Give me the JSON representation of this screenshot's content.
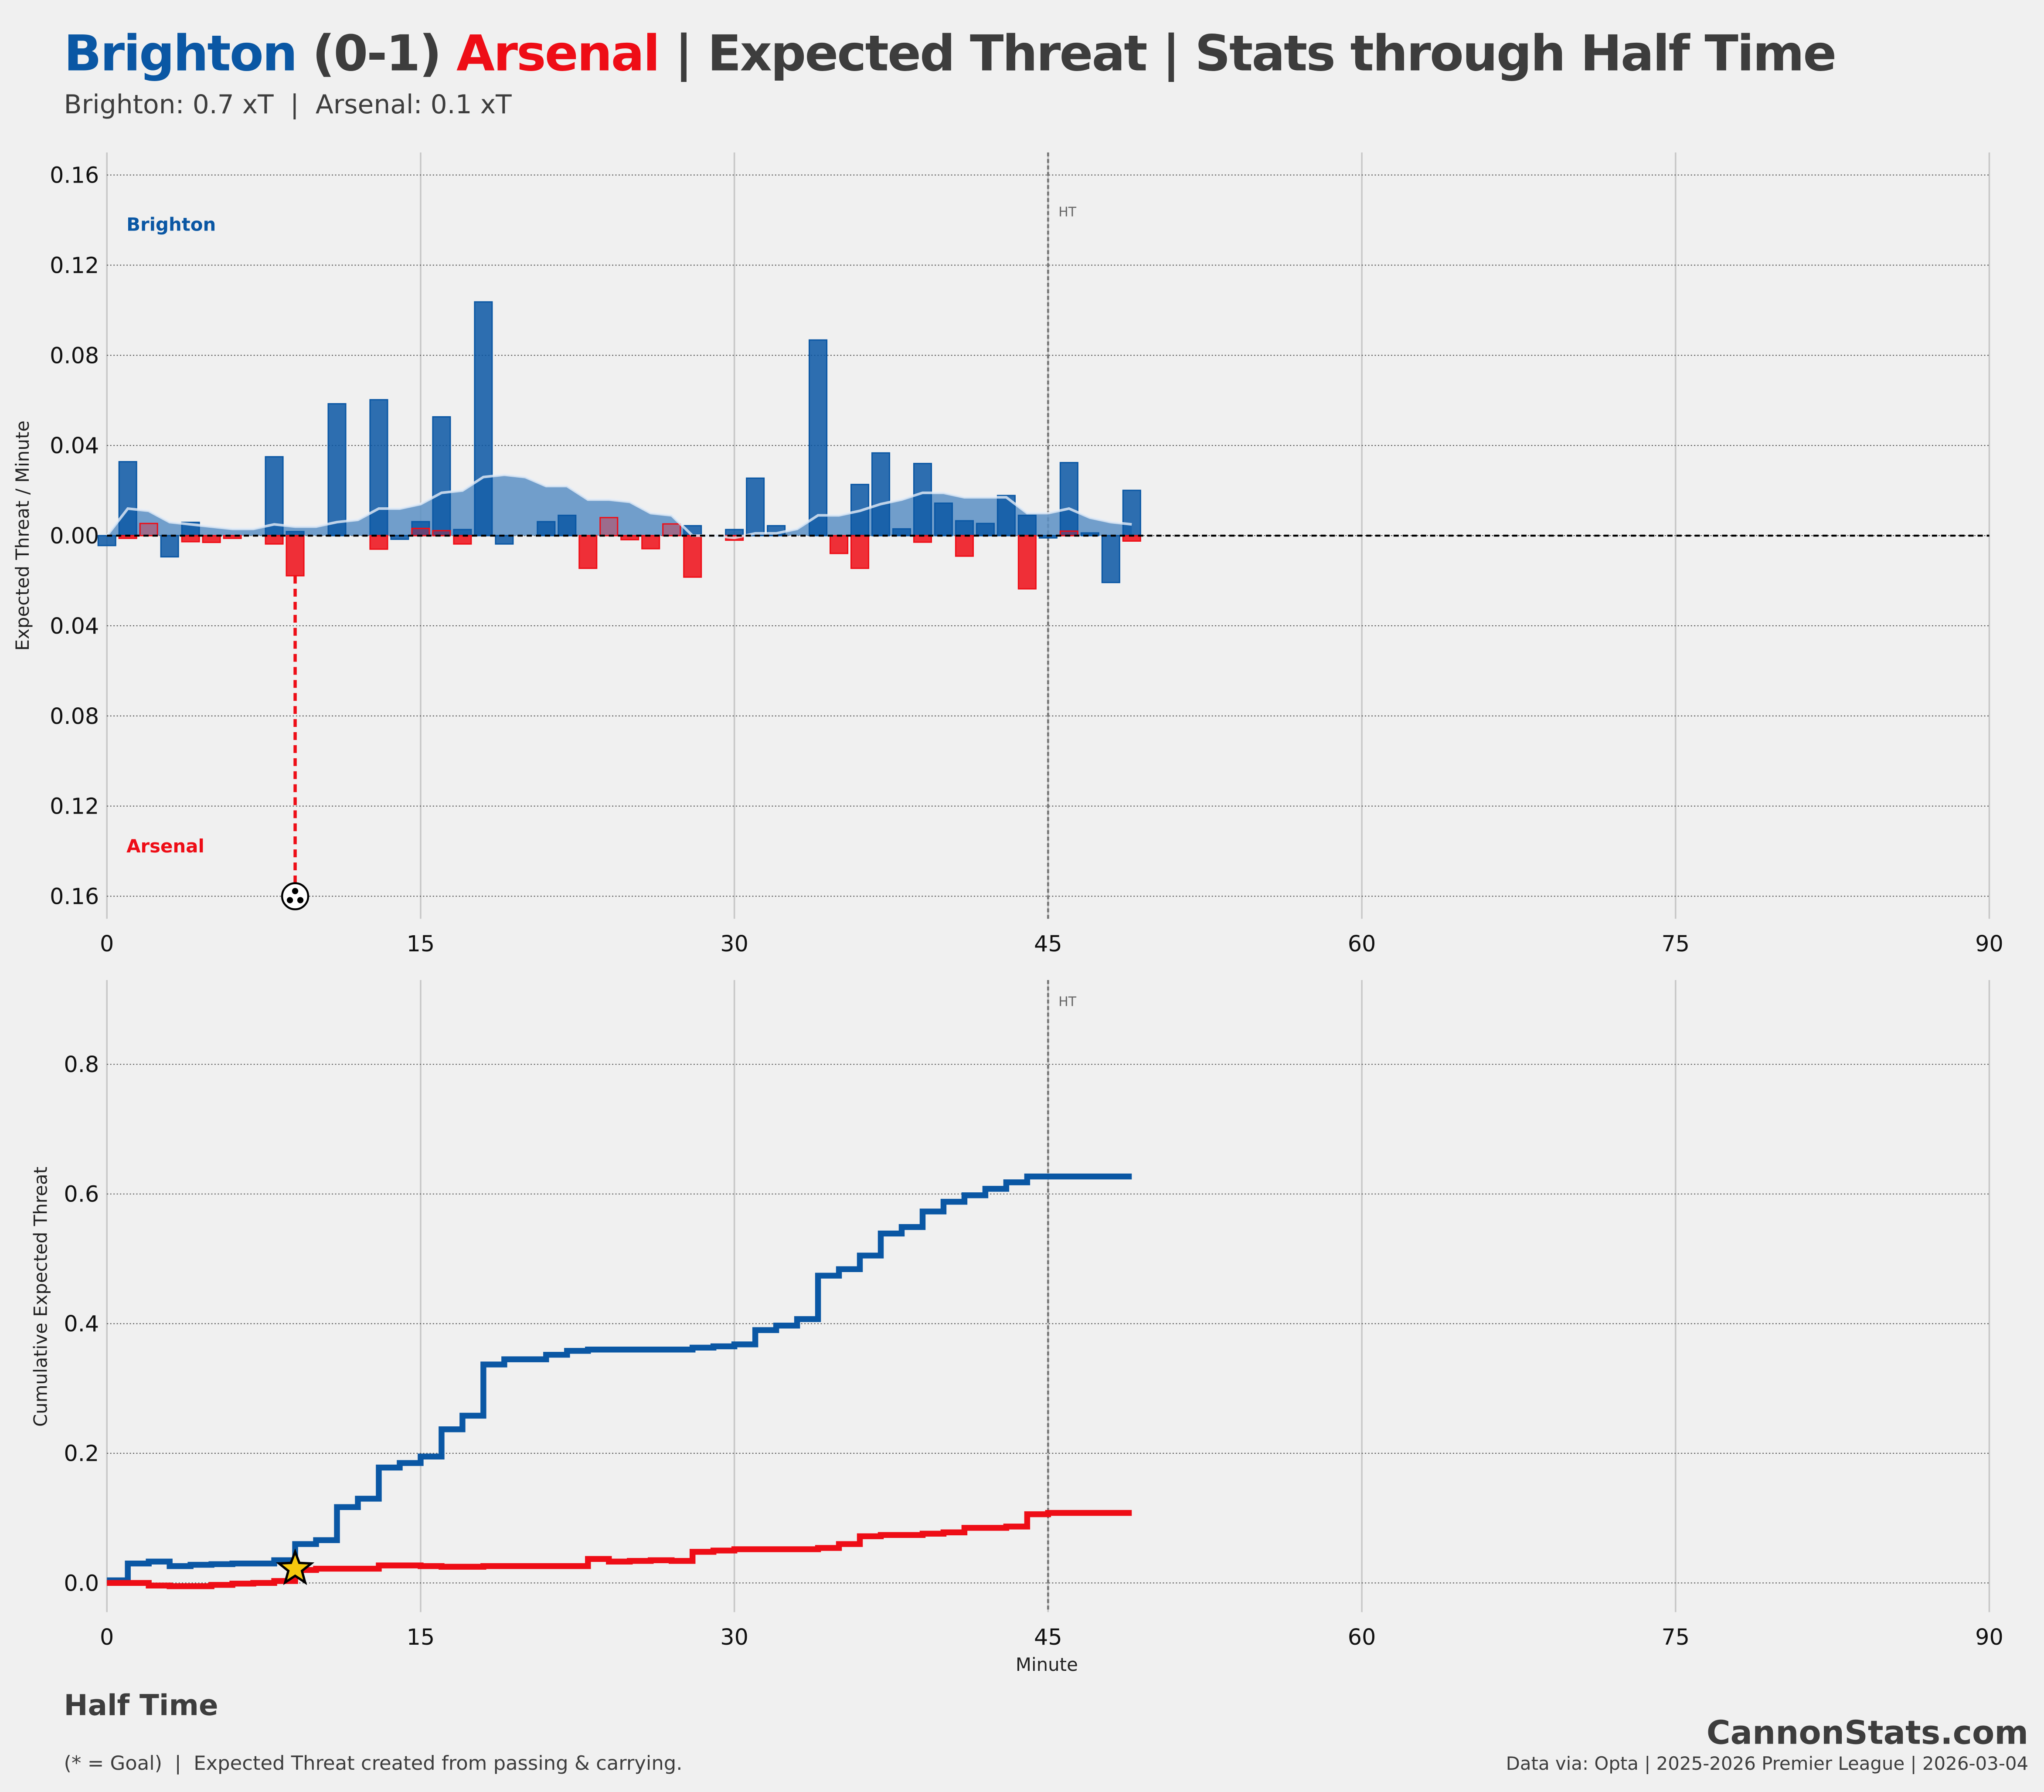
{
  "header": {
    "home": "Brighton",
    "score": "(0-1)",
    "away": "Arsenal",
    "rest": "| Expected Threat | Stats through Half Time",
    "subtitle": "Brighton: 0.7 xT  |  Arsenal: 0.1 xT"
  },
  "colors": {
    "home": "#0a57a4",
    "away": "#ee0d16",
    "text": "#3d3d3d",
    "bg": "#f0f0f0"
  },
  "footer": {
    "status": "Half Time",
    "note": "(* = Goal)  |  Expected Threat created from passing & carrying.",
    "brand": "CannonStats.com",
    "source": "Data via: Opta | 2025-2026 Premier League | 2026-03-04"
  },
  "chart_data": [
    {
      "type": "bar",
      "title": "",
      "xlabel": "",
      "ylabel": "Expected Threat / Minute",
      "xlim": [
        0,
        90
      ],
      "ylim": [
        -0.17,
        0.17
      ],
      "x_ticks": [
        0,
        15,
        30,
        45,
        60,
        75,
        90
      ],
      "y_ticks": [
        0.16,
        0.12,
        0.08,
        0.04,
        0.0,
        -0.04,
        -0.08,
        -0.12,
        -0.16
      ],
      "y_tick_labels": [
        "0.16",
        "0.12",
        "0.08",
        "0.04",
        "0.00",
        "0.04",
        "0.08",
        "0.12",
        "0.16"
      ],
      "team_labels": {
        "home": "Brighton",
        "away": "Arsenal"
      },
      "annotation": "HT",
      "halftime_minute": 45,
      "goal": {
        "team": "Arsenal",
        "minute": 9
      },
      "series": [
        {
          "name": "Brighton",
          "direction": "up",
          "minutes": [
            0,
            1,
            3,
            4,
            8,
            9,
            11,
            13,
            14,
            15,
            16,
            17,
            18,
            19,
            21,
            22,
            28,
            30,
            31,
            32,
            34,
            36,
            37,
            38,
            39,
            40,
            41,
            42,
            43,
            44,
            45,
            46,
            47,
            48,
            49
          ],
          "values": [
            -0.0044,
            0.0328,
            -0.0094,
            0.0059,
            0.035,
            0.0018,
            0.0585,
            0.0603,
            -0.0016,
            0.0062,
            0.0527,
            0.0027,
            0.1037,
            -0.0037,
            0.0062,
            0.009,
            0.0044,
            0.0027,
            0.0255,
            0.0044,
            0.0868,
            0.0227,
            0.0367,
            0.003,
            0.032,
            0.0144,
            0.0066,
            0.0054,
            0.0178,
            0.009,
            -0.001,
            0.0324,
            0.0012,
            -0.0208,
            0.0201
          ]
        },
        {
          "name": "Arsenal",
          "direction": "down",
          "minutes": [
            1,
            2,
            4,
            5,
            6,
            8,
            9,
            13,
            15,
            16,
            17,
            23,
            24,
            25,
            26,
            27,
            28,
            30,
            35,
            36,
            39,
            41,
            44,
            46,
            49
          ],
          "values": [
            0.0012,
            -0.0054,
            0.0027,
            0.003,
            0.0012,
            0.0037,
            0.0178,
            0.006,
            -0.0032,
            -0.0022,
            0.0037,
            0.0145,
            -0.008,
            0.0018,
            0.0058,
            -0.0052,
            0.0184,
            0.002,
            0.0079,
            0.0145,
            0.0029,
            0.0091,
            0.0236,
            -0.002,
            0.0024
          ]
        },
        {
          "name": "Brighton rolling average",
          "type": "area",
          "minutes": [
            0,
            1,
            2,
            3,
            4,
            5,
            6,
            7,
            8,
            9,
            10,
            11,
            12,
            13,
            14,
            15,
            16,
            17,
            18,
            19,
            20,
            21,
            22,
            23,
            24,
            25,
            26,
            27,
            28,
            29,
            30,
            31,
            32,
            33,
            34,
            35,
            36,
            37,
            38,
            39,
            40,
            41,
            42,
            43,
            44,
            45,
            46,
            47,
            48,
            49
          ],
          "values": [
            0,
            0.012,
            0.011,
            0.006,
            0.005,
            0.004,
            0.003,
            0.003,
            0.005,
            0.004,
            0.004,
            0.006,
            0.007,
            0.012,
            0.012,
            0.014,
            0.019,
            0.02,
            0.026,
            0.027,
            0.026,
            0.022,
            0.022,
            0.016,
            0.016,
            0.015,
            0.01,
            0.009,
            0,
            0,
            -0.001,
            0.001,
            0.001,
            0.003,
            0.009,
            0.009,
            0.011,
            0.014,
            0.016,
            0.019,
            0.019,
            0.017,
            0.017,
            0.017,
            0.01,
            0.01,
            0.012,
            0.008,
            0.006,
            0.005
          ]
        }
      ]
    },
    {
      "type": "line",
      "title": "",
      "xlabel": "Minute",
      "ylabel": "Cumulative Expected Threat",
      "xlim": [
        0,
        90
      ],
      "ylim": [
        -0.045,
        0.93
      ],
      "x_ticks": [
        0,
        15,
        30,
        45,
        60,
        75,
        90
      ],
      "y_ticks": [
        0.0,
        0.2,
        0.4,
        0.6,
        0.8
      ],
      "y_tick_labels": [
        "0.0",
        "0.2",
        "0.4",
        "0.6",
        "0.8"
      ],
      "annotation": "HT",
      "step": true,
      "goal_marker": {
        "team": "Arsenal",
        "minute": 9,
        "value": 0.022,
        "symbol": "star"
      },
      "series": [
        {
          "name": "Brighton",
          "x": [
            0,
            1,
            2,
            3,
            4,
            5,
            6,
            7,
            8,
            9,
            10,
            11,
            12,
            13,
            14,
            15,
            16,
            17,
            18,
            19,
            20,
            21,
            22,
            23,
            24,
            25,
            26,
            27,
            28,
            29,
            30,
            31,
            32,
            33,
            34,
            35,
            36,
            37,
            38,
            39,
            40,
            41,
            42,
            43,
            44,
            45,
            46,
            47,
            48,
            49
          ],
          "y": [
            0.004,
            0.03,
            0.033,
            0.026,
            0.028,
            0.029,
            0.03,
            0.03,
            0.035,
            0.06,
            0.066,
            0.117,
            0.13,
            0.178,
            0.185,
            0.195,
            0.237,
            0.258,
            0.337,
            0.345,
            0.345,
            0.352,
            0.358,
            0.36,
            0.36,
            0.36,
            0.36,
            0.36,
            0.363,
            0.365,
            0.368,
            0.39,
            0.397,
            0.407,
            0.474,
            0.484,
            0.505,
            0.539,
            0.549,
            0.573,
            0.588,
            0.598,
            0.608,
            0.618,
            0.627,
            0.627,
            0.627,
            0.627,
            0.627,
            0.627
          ]
        },
        {
          "name": "Arsenal",
          "x": [
            0,
            1,
            2,
            3,
            4,
            5,
            6,
            7,
            8,
            9,
            10,
            11,
            12,
            13,
            14,
            15,
            16,
            17,
            18,
            19,
            20,
            21,
            22,
            23,
            24,
            25,
            26,
            27,
            28,
            29,
            30,
            31,
            32,
            33,
            34,
            35,
            36,
            37,
            38,
            39,
            40,
            41,
            42,
            43,
            44,
            45,
            46,
            47,
            48,
            49
          ],
          "y": [
            0,
            0,
            -0.004,
            -0.005,
            -0.005,
            -0.003,
            -0.001,
            0,
            0.003,
            0.02,
            0.022,
            0.022,
            0.022,
            0.027,
            0.027,
            0.026,
            0.025,
            0.025,
            0.026,
            0.026,
            0.026,
            0.026,
            0.026,
            0.037,
            0.033,
            0.034,
            0.035,
            0.034,
            0.048,
            0.05,
            0.052,
            0.052,
            0.052,
            0.052,
            0.054,
            0.06,
            0.072,
            0.074,
            0.074,
            0.076,
            0.078,
            0.085,
            0.085,
            0.087,
            0.106,
            0.108,
            0.108,
            0.108,
            0.108,
            0.108
          ]
        }
      ]
    }
  ]
}
